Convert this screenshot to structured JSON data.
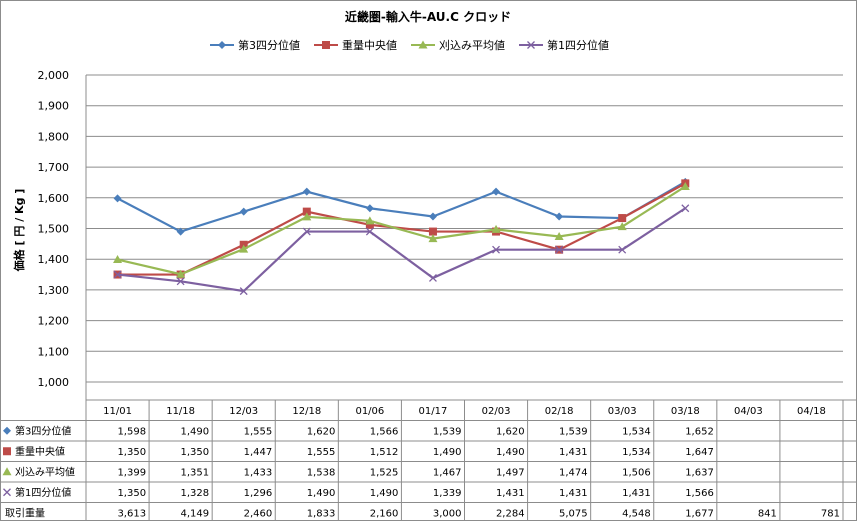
{
  "chart_data": {
    "type": "line",
    "title": "近畿圏-輸入牛-AU.C クロッド",
    "ylabel": "価格 [ 円 / Kg ]",
    "ylim": [
      1000,
      2000
    ],
    "yticks": [
      1000,
      1100,
      1200,
      1300,
      1400,
      1500,
      1600,
      1700,
      1800,
      1900,
      2000
    ],
    "ytick_labels": [
      "1,000",
      "1,100",
      "1,200",
      "1,300",
      "1,400",
      "1,500",
      "1,600",
      "1,700",
      "1,800",
      "1,900",
      "2,000"
    ],
    "grid": true,
    "legend_position": "top",
    "categories": [
      "11/01",
      "11/18",
      "12/03",
      "12/18",
      "01/06",
      "01/17",
      "02/03",
      "02/18",
      "03/03",
      "03/18",
      "04/03",
      "04/18"
    ],
    "series": [
      {
        "name": "第3四分位値",
        "color": "#4a7ebb",
        "marker": "diamond",
        "values": [
          1598,
          1490,
          1555,
          1620,
          1566,
          1539,
          1620,
          1539,
          1534,
          1652,
          null,
          null
        ],
        "labels": [
          "1,598",
          "1,490",
          "1,555",
          "1,620",
          "1,566",
          "1,539",
          "1,620",
          "1,539",
          "1,534",
          "1,652",
          "",
          ""
        ]
      },
      {
        "name": "重量中央値",
        "color": "#be4b48",
        "marker": "square",
        "values": [
          1350,
          1350,
          1447,
          1555,
          1512,
          1490,
          1490,
          1431,
          1534,
          1647,
          null,
          null
        ],
        "labels": [
          "1,350",
          "1,350",
          "1,447",
          "1,555",
          "1,512",
          "1,490",
          "1,490",
          "1,431",
          "1,534",
          "1,647",
          "",
          ""
        ]
      },
      {
        "name": "刈込み平均値",
        "color": "#98b954",
        "marker": "triangle",
        "values": [
          1399,
          1351,
          1433,
          1538,
          1525,
          1467,
          1497,
          1474,
          1506,
          1637,
          null,
          null
        ],
        "labels": [
          "1,399",
          "1,351",
          "1,433",
          "1,538",
          "1,525",
          "1,467",
          "1,497",
          "1,474",
          "1,506",
          "1,637",
          "",
          ""
        ]
      },
      {
        "name": "第1四分位値",
        "color": "#7d60a0",
        "marker": "x",
        "values": [
          1350,
          1328,
          1296,
          1490,
          1490,
          1339,
          1431,
          1431,
          1431,
          1566,
          null,
          null
        ],
        "labels": [
          "1,350",
          "1,328",
          "1,296",
          "1,490",
          "1,490",
          "1,339",
          "1,431",
          "1,431",
          "1,431",
          "1,566",
          "",
          ""
        ]
      }
    ],
    "volume": {
      "name": "取引重量",
      "values": [
        3613,
        4149,
        2460,
        1833,
        2160,
        3000,
        2284,
        5075,
        4548,
        1677,
        841,
        781
      ],
      "labels": [
        "3,613",
        "4,149",
        "2,460",
        "1,833",
        "2,160",
        "3,000",
        "2,284",
        "5,075",
        "4,548",
        "1,677",
        "841",
        "781"
      ]
    }
  }
}
